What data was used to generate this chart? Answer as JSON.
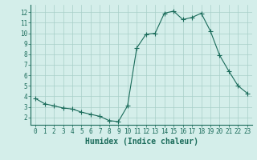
{
  "x": [
    0,
    1,
    2,
    3,
    4,
    5,
    6,
    7,
    8,
    9,
    10,
    11,
    12,
    13,
    14,
    15,
    16,
    17,
    18,
    19,
    20,
    21,
    22,
    23
  ],
  "y": [
    3.8,
    3.3,
    3.1,
    2.9,
    2.8,
    2.5,
    2.3,
    2.1,
    1.7,
    1.6,
    3.1,
    8.6,
    9.9,
    10.0,
    11.9,
    12.1,
    11.3,
    11.5,
    11.9,
    10.2,
    7.9,
    6.4,
    5.0,
    4.3
  ],
  "title": "",
  "xlabel": "Humidex (Indice chaleur)",
  "ylabel": "",
  "xlim": [
    -0.5,
    23.5
  ],
  "ylim": [
    1.3,
    12.7
  ],
  "yticks": [
    2,
    3,
    4,
    5,
    6,
    7,
    8,
    9,
    10,
    11,
    12
  ],
  "xticks": [
    0,
    1,
    2,
    3,
    4,
    5,
    6,
    7,
    8,
    9,
    10,
    11,
    12,
    13,
    14,
    15,
    16,
    17,
    18,
    19,
    20,
    21,
    22,
    23
  ],
  "line_color": "#1a6b5a",
  "marker": "+",
  "marker_size": 4,
  "bg_color": "#d4eeea",
  "grid_color": "#a8cfc8",
  "tick_label_fontsize": 5.5,
  "xlabel_fontsize": 7
}
